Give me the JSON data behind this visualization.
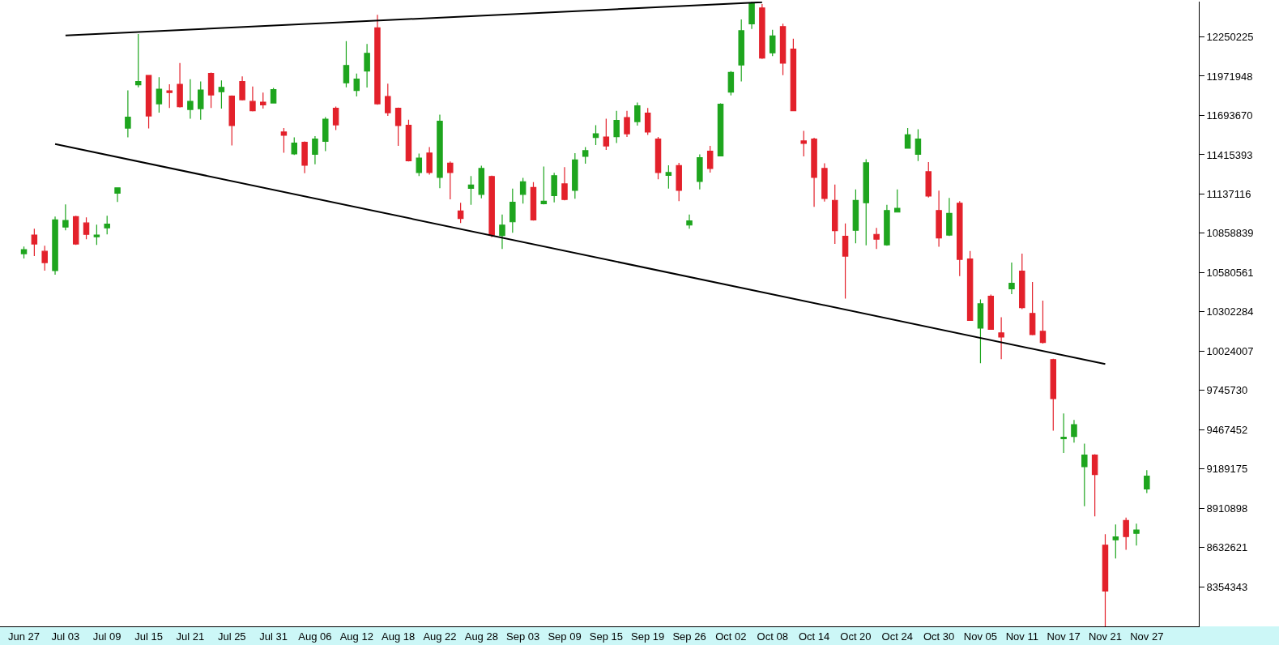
{
  "chart_data": {
    "type": "candlestick",
    "categories": [
      "Jun 27",
      null,
      null,
      null,
      "Jul 03",
      null,
      null,
      null,
      "Jul 09",
      null,
      null,
      null,
      "Jul 15",
      null,
      null,
      null,
      "Jul 21",
      null,
      null,
      null,
      "Jul 25",
      null,
      null,
      null,
      "Jul 31",
      null,
      null,
      null,
      "Aug 06",
      null,
      null,
      null,
      "Aug 12",
      null,
      null,
      null,
      "Aug 18",
      null,
      null,
      null,
      "Aug 22",
      null,
      null,
      null,
      "Aug 28",
      null,
      null,
      null,
      "Sep 03",
      null,
      null,
      null,
      "Sep 09",
      null,
      null,
      null,
      "Sep 15",
      null,
      null,
      null,
      "Sep 19",
      null,
      null,
      null,
      "Sep 26",
      null,
      null,
      null,
      "Oct 02",
      null,
      null,
      null,
      "Oct 08",
      null,
      null,
      null,
      "Oct 14",
      null,
      null,
      null,
      "Oct 20",
      null,
      null,
      null,
      "Oct 24",
      null,
      null,
      null,
      "Oct 30",
      null,
      null,
      null,
      "Nov 05",
      null,
      null,
      null,
      "Nov 11",
      null,
      null,
      null,
      "Nov 17",
      null,
      null,
      null,
      "Nov 21",
      null,
      null,
      null,
      "Nov 27"
    ],
    "ohlc": [
      [
        10714000,
        10765000,
        10680000,
        10743000
      ],
      [
        10846000,
        10891000,
        10697000,
        10783000
      ],
      [
        10731000,
        10771000,
        10594000,
        10651000
      ],
      [
        10594000,
        10977000,
        10565000,
        10954000
      ],
      [
        10903000,
        11063000,
        10880000,
        10949000
      ],
      [
        10977000,
        10983000,
        10777000,
        10783000
      ],
      [
        10932000,
        10972000,
        10817000,
        10851000
      ],
      [
        10834000,
        10920000,
        10777000,
        10846000
      ],
      [
        10897000,
        10983000,
        10851000,
        10923000
      ],
      [
        11143000,
        11183000,
        11080000,
        11181000
      ],
      [
        11604000,
        11871000,
        11538000,
        11682000
      ],
      [
        11911000,
        12271000,
        11893000,
        11934000
      ],
      [
        11977000,
        11979000,
        11601000,
        11690000
      ],
      [
        11776000,
        11965000,
        11713000,
        11879000
      ],
      [
        11868000,
        11914000,
        11747000,
        11856000
      ],
      [
        11914000,
        12065000,
        11750000,
        11756000
      ],
      [
        11736000,
        11951000,
        11670000,
        11793000
      ],
      [
        11742000,
        11934000,
        11664000,
        11873000
      ],
      [
        11991000,
        11997000,
        11747000,
        11839000
      ],
      [
        11862000,
        11942000,
        11742000,
        11893000
      ],
      [
        11831000,
        11836000,
        11481000,
        11622000
      ],
      [
        11934000,
        11971000,
        11799000,
        11805000
      ],
      [
        11793000,
        11899000,
        11722000,
        11727000
      ],
      [
        11788000,
        11856000,
        11742000,
        11768000
      ],
      [
        11782000,
        11888000,
        11779000,
        11876000
      ],
      [
        11576000,
        11604000,
        11430000,
        11553000
      ],
      [
        11421000,
        11538000,
        11413000,
        11498000
      ],
      [
        11504000,
        11510000,
        11284000,
        11341000
      ],
      [
        11418000,
        11547000,
        11347000,
        11527000
      ],
      [
        11510000,
        11682000,
        11441000,
        11667000
      ],
      [
        11745000,
        11756000,
        11590000,
        11627000
      ],
      [
        11925000,
        12220000,
        11893000,
        12048000
      ],
      [
        11871000,
        11991000,
        11828000,
        11951000
      ],
      [
        12008000,
        12200000,
        11891000,
        12134000
      ],
      [
        12314000,
        12406000,
        11770000,
        11776000
      ],
      [
        11828000,
        11919000,
        11690000,
        11713000
      ],
      [
        11745000,
        11750000,
        11478000,
        11622000
      ],
      [
        11624000,
        11664000,
        11367000,
        11372000
      ],
      [
        11289000,
        11424000,
        11264000,
        11392000
      ],
      [
        11427000,
        11470000,
        11275000,
        11289000
      ],
      [
        11255000,
        11699000,
        11178000,
        11653000
      ],
      [
        11355000,
        11367000,
        11100000,
        11289000
      ],
      [
        11017000,
        11075000,
        10932000,
        10963000
      ],
      [
        11178000,
        11264000,
        11060000,
        11201000
      ],
      [
        11135000,
        11338000,
        11106000,
        11318000
      ],
      [
        11261000,
        11267000,
        10831000,
        10846000
      ],
      [
        10843000,
        10992000,
        10748000,
        10917000
      ],
      [
        10940000,
        11175000,
        10863000,
        11078000
      ],
      [
        11135000,
        11252000,
        11069000,
        11224000
      ],
      [
        11183000,
        11221000,
        10949000,
        10954000
      ],
      [
        11069000,
        11332000,
        11063000,
        11086000
      ],
      [
        11126000,
        11287000,
        11078000,
        11267000
      ],
      [
        11209000,
        11327000,
        11092000,
        11098000
      ],
      [
        11163000,
        11427000,
        11103000,
        11378000
      ],
      [
        11404000,
        11470000,
        11352000,
        11444000
      ],
      [
        11538000,
        11624000,
        11484000,
        11564000
      ],
      [
        11541000,
        11670000,
        11450000,
        11478000
      ],
      [
        11544000,
        11727000,
        11498000,
        11659000
      ],
      [
        11679000,
        11727000,
        11541000,
        11564000
      ],
      [
        11650000,
        11785000,
        11622000,
        11762000
      ],
      [
        11710000,
        11747000,
        11556000,
        11576000
      ],
      [
        11527000,
        11541000,
        11241000,
        11289000
      ],
      [
        11269000,
        11341000,
        11175000,
        11289000
      ],
      [
        11338000,
        11358000,
        11086000,
        11163000
      ],
      [
        10917000,
        10992000,
        10891000,
        10946000
      ],
      [
        11226000,
        11418000,
        11169000,
        11395000
      ],
      [
        11441000,
        11478000,
        11289000,
        11318000
      ],
      [
        11407000,
        11779000,
        11404000,
        11773000
      ],
      [
        11859000,
        12008000,
        11836000,
        11999000
      ],
      [
        12051000,
        12374000,
        11934000,
        12294000
      ],
      [
        12343000,
        12498000,
        12306000,
        12490000
      ],
      [
        12455000,
        12483000,
        12094000,
        12100000
      ],
      [
        12137000,
        12300000,
        12114000,
        12257000
      ],
      [
        12323000,
        12343000,
        11979000,
        12065000
      ],
      [
        12163000,
        12237000,
        11725000,
        11727000
      ],
      [
        11513000,
        11584000,
        11404000,
        11496000
      ],
      [
        11527000,
        11536000,
        11046000,
        11255000
      ],
      [
        11318000,
        11355000,
        11083000,
        11106000
      ],
      [
        11092000,
        11204000,
        10783000,
        10877000
      ],
      [
        10837000,
        10929000,
        10396000,
        10697000
      ],
      [
        10880000,
        11169000,
        10788000,
        11092000
      ],
      [
        11075000,
        11384000,
        10774000,
        11358000
      ],
      [
        10851000,
        10897000,
        10748000,
        10817000
      ],
      [
        10777000,
        11060000,
        10771000,
        11020000
      ],
      [
        11009000,
        11169000,
        11006000,
        11035000
      ],
      [
        11461000,
        11604000,
        11458000,
        11556000
      ],
      [
        11418000,
        11596000,
        11370000,
        11527000
      ],
      [
        11295000,
        11364000,
        11112000,
        11123000
      ],
      [
        11020000,
        11161000,
        10763000,
        10826000
      ],
      [
        10846000,
        11109000,
        10840000,
        11000000
      ],
      [
        11072000,
        11086000,
        10556000,
        10674000
      ],
      [
        10677000,
        10734000,
        10239000,
        10242000
      ],
      [
        10187000,
        10390000,
        9938000,
        10359000
      ],
      [
        10413000,
        10425000,
        10176000,
        10179000
      ],
      [
        10153000,
        10264000,
        9967000,
        10124000
      ],
      [
        10466000,
        10651000,
        10428000,
        10504000
      ],
      [
        10591000,
        10714000,
        10321000,
        10332000
      ],
      [
        10291000,
        10514000,
        10136000,
        10141000
      ],
      [
        10164000,
        10382000,
        10078000,
        10085000
      ],
      [
        9964000,
        9970000,
        9460000,
        9687000
      ],
      [
        9403000,
        9582000,
        9303000,
        9414000
      ],
      [
        9420000,
        9536000,
        9376000,
        9503000
      ],
      [
        9205000,
        9368000,
        8925000,
        9288000
      ],
      [
        9288000,
        9294000,
        8853000,
        9149000
      ],
      [
        8649000,
        8727000,
        8074000,
        8324000
      ],
      [
        8687000,
        8796000,
        8555000,
        8708000
      ],
      [
        8824000,
        8844000,
        8617000,
        8710000
      ],
      [
        8733000,
        8801000,
        8647000,
        8757000
      ],
      [
        9048000,
        9181000,
        9019000,
        9138000
      ]
    ],
    "colors": [
      "#1ea51e",
      "#e3212b",
      "#e3212b",
      "#1ea51e",
      "#1ea51e",
      "#e3212b",
      "#e3212b",
      "#1ea51e",
      "#1ea51e",
      "#1ea51e",
      "#1ea51e",
      "#1ea51e",
      "#e3212b",
      "#1ea51e",
      "#e3212b",
      "#e3212b",
      "#1ea51e",
      "#1ea51e",
      "#e3212b",
      "#1ea51e",
      "#e3212b",
      "#e3212b",
      "#e3212b",
      "#e3212b",
      "#1ea51e",
      "#e3212b",
      "#1ea51e",
      "#e3212b",
      "#1ea51e",
      "#1ea51e",
      "#e3212b",
      "#1ea51e",
      "#1ea51e",
      "#1ea51e",
      "#e3212b",
      "#e3212b",
      "#e3212b",
      "#e3212b",
      "#1ea51e",
      "#e3212b",
      "#1ea51e",
      "#e3212b",
      "#e3212b",
      "#1ea51e",
      "#1ea51e",
      "#e3212b",
      "#1ea51e",
      "#1ea51e",
      "#1ea51e",
      "#e3212b",
      "#1ea51e",
      "#1ea51e",
      "#e3212b",
      "#1ea51e",
      "#1ea51e",
      "#1ea51e",
      "#e3212b",
      "#1ea51e",
      "#e3212b",
      "#1ea51e",
      "#e3212b",
      "#e3212b",
      "#1ea51e",
      "#e3212b",
      "#1ea51e",
      "#1ea51e",
      "#e3212b",
      "#1ea51e",
      "#1ea51e",
      "#1ea51e",
      "#1ea51e",
      "#e3212b",
      "#1ea51e",
      "#e3212b",
      "#e3212b",
      "#e3212b",
      "#e3212b",
      "#e3212b",
      "#e3212b",
      "#e3212b",
      "#1ea51e",
      "#1ea51e",
      "#e3212b",
      "#1ea51e",
      "#1ea51e",
      "#1ea51e",
      "#1ea51e",
      "#e3212b",
      "#e3212b",
      "#1ea51e",
      "#e3212b",
      "#e3212b",
      "#1ea51e",
      "#e3212b",
      "#e3212b",
      "#1ea51e",
      "#e3212b",
      "#e3212b",
      "#e3212b",
      "#e3212b",
      "#1ea51e",
      "#1ea51e",
      "#1ea51e",
      "#e3212b",
      "#e3212b",
      "#1ea51e",
      "#e3212b",
      "#1ea51e",
      "#1ea51e"
    ],
    "series": [
      {
        "type": "line",
        "values": [
          null,
          null,
          null,
          null,
          12260000,
          null,
          null,
          null,
          null,
          null,
          null,
          null,
          null,
          null,
          null,
          null,
          null,
          null,
          null,
          null,
          null,
          null,
          null,
          null,
          null,
          null,
          null,
          null,
          null,
          null,
          null,
          null,
          null,
          null,
          null,
          null,
          null,
          null,
          null,
          null,
          null,
          null,
          null,
          null,
          null,
          null,
          null,
          null,
          null,
          null,
          null,
          null,
          null,
          null,
          null,
          null,
          null,
          null,
          null,
          null,
          null,
          null,
          null,
          null,
          null,
          null,
          null,
          null,
          null,
          null,
          null,
          12496000,
          null,
          null,
          null,
          null,
          null,
          null,
          null,
          null,
          null,
          null,
          null,
          null,
          null,
          null,
          null,
          null,
          null,
          null,
          null,
          null,
          null,
          null,
          null,
          null,
          null,
          null,
          null,
          null,
          null,
          null,
          null,
          null,
          null,
          null,
          null,
          null,
          null
        ],
        "color": "#000000"
      },
      {
        "type": "line",
        "values": [
          null,
          null,
          null,
          11491000,
          null,
          null,
          null,
          null,
          null,
          null,
          null,
          null,
          null,
          null,
          null,
          null,
          null,
          null,
          null,
          null,
          null,
          null,
          null,
          null,
          null,
          null,
          null,
          null,
          null,
          null,
          null,
          null,
          null,
          null,
          null,
          null,
          null,
          null,
          null,
          null,
          null,
          null,
          null,
          null,
          null,
          null,
          null,
          null,
          null,
          null,
          null,
          null,
          null,
          null,
          null,
          null,
          null,
          null,
          null,
          null,
          null,
          null,
          null,
          null,
          null,
          null,
          null,
          null,
          null,
          null,
          null,
          null,
          null,
          null,
          null,
          null,
          null,
          null,
          null,
          null,
          null,
          null,
          null,
          null,
          null,
          null,
          null,
          null,
          null,
          null,
          null,
          null,
          null,
          null,
          null,
          null,
          null,
          null,
          null,
          null,
          null,
          null,
          null,
          null,
          9932000,
          null,
          null,
          null,
          null
        ],
        "color": "#000000"
      }
    ],
    "ylim": [
      8074000,
      12500000
    ],
    "yticks": [
      8354343,
      8632621,
      8910898,
      9189175,
      9467452,
      9745730,
      10024007,
      10302284,
      10580561,
      10858839,
      11137116,
      11415393,
      11693670,
      11971948,
      12250225
    ]
  }
}
